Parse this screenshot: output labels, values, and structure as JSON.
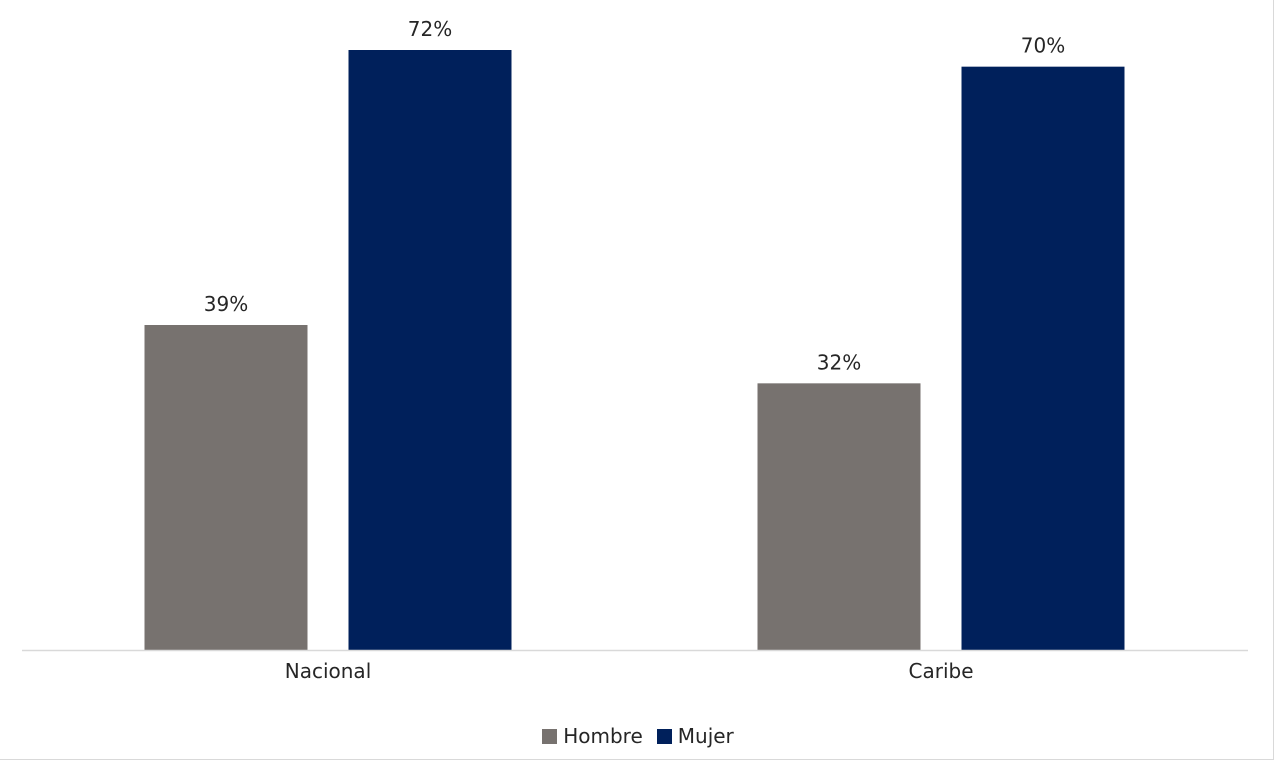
{
  "chart_data": {
    "type": "bar",
    "categories": [
      "Nacional",
      "Caribe"
    ],
    "series": [
      {
        "name": "Hombre",
        "values": [
          39,
          32
        ],
        "labels": [
          "39%",
          "32%"
        ],
        "color": "#77726f"
      },
      {
        "name": "Mujer",
        "values": [
          72,
          70
        ],
        "labels": [
          "72%",
          "70%"
        ],
        "color": "#00205b"
      }
    ],
    "ylim": [
      0,
      78
    ],
    "grid": false,
    "legend_position": "bottom"
  }
}
